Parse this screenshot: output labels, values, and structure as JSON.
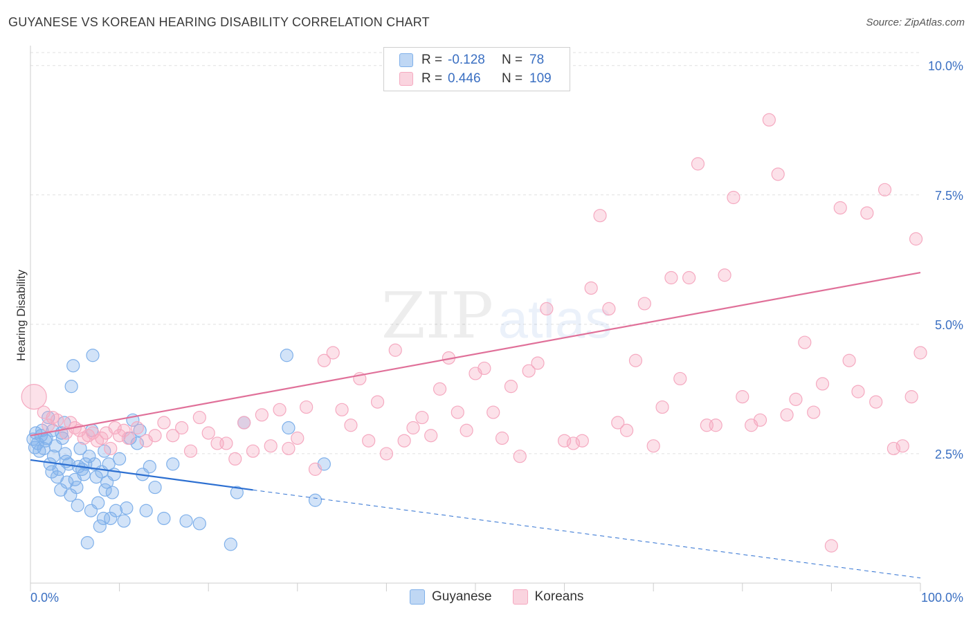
{
  "header": {
    "title": "GUYANESE VS KOREAN HEARING DISABILITY CORRELATION CHART",
    "source": "Source: ZipAtlas.com"
  },
  "watermark": {
    "zip": "ZIP",
    "atlas": "atlas"
  },
  "legend": {
    "rows": [
      {
        "r_label": "R =",
        "r_value": "-0.128",
        "n_label": "N =",
        "n_value": "78",
        "color": "#7fb0ea"
      },
      {
        "r_label": "R =",
        "r_value": "0.446",
        "n_label": "N =",
        "n_value": "109",
        "color": "#f5a9c0"
      }
    ],
    "bottom": [
      {
        "label": "Guyanese",
        "color": "#7fb0ea"
      },
      {
        "label": "Koreans",
        "color": "#f5a9c0"
      }
    ]
  },
  "chart_data": {
    "type": "scatter",
    "title": "GUYANESE VS KOREAN HEARING DISABILITY CORRELATION CHART",
    "ylabel": "Hearing Disability",
    "xlabel": "",
    "xlim": [
      0,
      100
    ],
    "ylim": [
      0,
      10.25
    ],
    "x_tick_labels": [
      "0.0%",
      "100.0%"
    ],
    "y_ticks": [
      2.5,
      5.0,
      7.5,
      10.0
    ],
    "y_tick_labels": [
      "2.5%",
      "5.0%",
      "7.5%",
      "10.0%"
    ],
    "grid": "horizontal-dashed",
    "legend_placement": "top-center",
    "series": [
      {
        "name": "Guyanese",
        "color": "#7fb0ea",
        "line_color": "#2c6fd1",
        "trend": {
          "x": [
            0,
            25
          ],
          "y": [
            2.38,
            1.8
          ],
          "dashed_to": [
            100,
            0.1
          ]
        },
        "points": [
          [
            0.3,
            2.78
          ],
          [
            0.5,
            2.62
          ],
          [
            0.6,
            2.9
          ],
          [
            0.8,
            2.7
          ],
          [
            1.0,
            2.55
          ],
          [
            1.2,
            2.85
          ],
          [
            1.3,
            2.95
          ],
          [
            1.5,
            2.6
          ],
          [
            1.7,
            2.75
          ],
          [
            2.0,
            3.2
          ],
          [
            2.2,
            2.3
          ],
          [
            2.4,
            2.15
          ],
          [
            2.6,
            2.45
          ],
          [
            2.8,
            2.65
          ],
          [
            3.0,
            2.05
          ],
          [
            3.2,
            2.2
          ],
          [
            3.4,
            1.8
          ],
          [
            3.5,
            2.9
          ],
          [
            3.6,
            2.8
          ],
          [
            3.8,
            3.1
          ],
          [
            4.0,
            2.35
          ],
          [
            4.1,
            1.95
          ],
          [
            4.3,
            2.3
          ],
          [
            4.5,
            1.7
          ],
          [
            4.6,
            3.8
          ],
          [
            4.8,
            4.2
          ],
          [
            5.0,
            2.0
          ],
          [
            5.2,
            1.85
          ],
          [
            5.4,
            2.25
          ],
          [
            5.6,
            2.6
          ],
          [
            5.8,
            2.2
          ],
          [
            6.0,
            2.1
          ],
          [
            6.2,
            2.3
          ],
          [
            6.4,
            0.78
          ],
          [
            6.6,
            2.45
          ],
          [
            6.8,
            1.4
          ],
          [
            7.0,
            4.4
          ],
          [
            7.2,
            2.3
          ],
          [
            7.4,
            2.05
          ],
          [
            7.6,
            1.55
          ],
          [
            7.8,
            1.1
          ],
          [
            8.0,
            2.15
          ],
          [
            8.2,
            1.25
          ],
          [
            8.4,
            1.8
          ],
          [
            8.6,
            1.95
          ],
          [
            8.8,
            2.3
          ],
          [
            9.0,
            1.25
          ],
          [
            9.2,
            1.75
          ],
          [
            9.6,
            1.4
          ],
          [
            10.0,
            2.4
          ],
          [
            10.5,
            1.2
          ],
          [
            10.8,
            1.45
          ],
          [
            11.2,
            2.8
          ],
          [
            11.5,
            3.15
          ],
          [
            12.0,
            2.7
          ],
          [
            12.3,
            2.95
          ],
          [
            12.6,
            2.1
          ],
          [
            13.0,
            1.4
          ],
          [
            13.4,
            2.25
          ],
          [
            14.0,
            1.85
          ],
          [
            15.0,
            1.25
          ],
          [
            16.0,
            2.3
          ],
          [
            17.5,
            1.2
          ],
          [
            19.0,
            1.15
          ],
          [
            22.5,
            0.75
          ],
          [
            23.2,
            1.75
          ],
          [
            24.0,
            3.1
          ],
          [
            29.0,
            3.0
          ],
          [
            28.8,
            4.4
          ],
          [
            32.0,
            1.6
          ],
          [
            33.0,
            2.3
          ],
          [
            2.5,
            2.95
          ],
          [
            1.8,
            2.8
          ],
          [
            3.9,
            2.5
          ],
          [
            5.3,
            1.5
          ],
          [
            6.9,
            2.95
          ],
          [
            8.3,
            2.55
          ],
          [
            9.4,
            2.1
          ]
        ]
      },
      {
        "name": "Koreans",
        "color": "#f5a9c0",
        "line_color": "#e07099",
        "trend": {
          "x": [
            0,
            100
          ],
          "y": [
            2.85,
            6.0
          ]
        },
        "points": [
          [
            0.4,
            3.6
          ],
          [
            1.5,
            3.3
          ],
          [
            2.0,
            3.05
          ],
          [
            2.5,
            3.2
          ],
          [
            3.0,
            3.15
          ],
          [
            4.0,
            2.9
          ],
          [
            4.5,
            3.1
          ],
          [
            5.0,
            3.0
          ],
          [
            5.5,
            2.95
          ],
          [
            6.0,
            2.8
          ],
          [
            6.5,
            2.85
          ],
          [
            7.0,
            2.9
          ],
          [
            7.5,
            2.75
          ],
          [
            8.0,
            2.8
          ],
          [
            8.5,
            2.9
          ],
          [
            9.0,
            2.6
          ],
          [
            9.5,
            3.0
          ],
          [
            10.0,
            2.85
          ],
          [
            10.5,
            2.95
          ],
          [
            11.0,
            2.8
          ],
          [
            12.0,
            3.0
          ],
          [
            13.0,
            2.75
          ],
          [
            14.0,
            2.85
          ],
          [
            15.0,
            3.1
          ],
          [
            16.0,
            2.85
          ],
          [
            17.0,
            3.0
          ],
          [
            18.0,
            2.55
          ],
          [
            19.0,
            3.2
          ],
          [
            20.0,
            2.9
          ],
          [
            21.0,
            2.7
          ],
          [
            22.0,
            2.7
          ],
          [
            23.0,
            2.4
          ],
          [
            24.0,
            3.1
          ],
          [
            25.0,
            2.55
          ],
          [
            26.0,
            3.25
          ],
          [
            27.0,
            2.65
          ],
          [
            28.0,
            3.35
          ],
          [
            29.0,
            2.6
          ],
          [
            30.0,
            2.8
          ],
          [
            31.0,
            3.4
          ],
          [
            32.0,
            2.2
          ],
          [
            33.0,
            4.3
          ],
          [
            34.0,
            4.45
          ],
          [
            35.0,
            3.35
          ],
          [
            36.0,
            3.05
          ],
          [
            37.0,
            3.95
          ],
          [
            38.0,
            2.75
          ],
          [
            39.0,
            3.5
          ],
          [
            40.0,
            2.5
          ],
          [
            41.0,
            4.5
          ],
          [
            42.0,
            2.75
          ],
          [
            43.0,
            3.0
          ],
          [
            44.0,
            3.2
          ],
          [
            45.0,
            2.85
          ],
          [
            46.0,
            3.75
          ],
          [
            47.0,
            4.35
          ],
          [
            48.0,
            3.3
          ],
          [
            49.0,
            2.95
          ],
          [
            50.0,
            4.05
          ],
          [
            51.0,
            4.15
          ],
          [
            52.0,
            3.3
          ],
          [
            53.0,
            2.8
          ],
          [
            54.0,
            3.8
          ],
          [
            55.0,
            2.45
          ],
          [
            56.0,
            4.1
          ],
          [
            57.0,
            4.25
          ],
          [
            58.0,
            5.3
          ],
          [
            60.0,
            2.75
          ],
          [
            61.0,
            2.7
          ],
          [
            62.0,
            2.75
          ],
          [
            63.0,
            5.7
          ],
          [
            64.0,
            7.1
          ],
          [
            65.0,
            5.3
          ],
          [
            66.0,
            3.1
          ],
          [
            67.0,
            2.95
          ],
          [
            68.0,
            4.3
          ],
          [
            69.0,
            5.4
          ],
          [
            70.0,
            2.65
          ],
          [
            71.0,
            3.4
          ],
          [
            72.0,
            5.9
          ],
          [
            73.0,
            3.95
          ],
          [
            74.0,
            5.9
          ],
          [
            75.0,
            8.1
          ],
          [
            76.0,
            3.05
          ],
          [
            77.0,
            3.05
          ],
          [
            78.0,
            5.95
          ],
          [
            79.0,
            7.45
          ],
          [
            80.0,
            3.6
          ],
          [
            81.0,
            3.05
          ],
          [
            82.0,
            3.15
          ],
          [
            83.0,
            8.95
          ],
          [
            84.0,
            7.9
          ],
          [
            85.0,
            3.25
          ],
          [
            86.0,
            3.55
          ],
          [
            87.0,
            4.65
          ],
          [
            88.0,
            3.3
          ],
          [
            89.0,
            3.85
          ],
          [
            90.0,
            0.72
          ],
          [
            91.0,
            7.25
          ],
          [
            92.0,
            4.3
          ],
          [
            93.0,
            3.7
          ],
          [
            94.0,
            7.15
          ],
          [
            95.0,
            3.5
          ],
          [
            96.0,
            7.6
          ],
          [
            97.0,
            2.6
          ],
          [
            98.0,
            2.65
          ],
          [
            99.0,
            3.6
          ],
          [
            99.5,
            6.65
          ],
          [
            100.0,
            4.45
          ]
        ]
      }
    ]
  }
}
